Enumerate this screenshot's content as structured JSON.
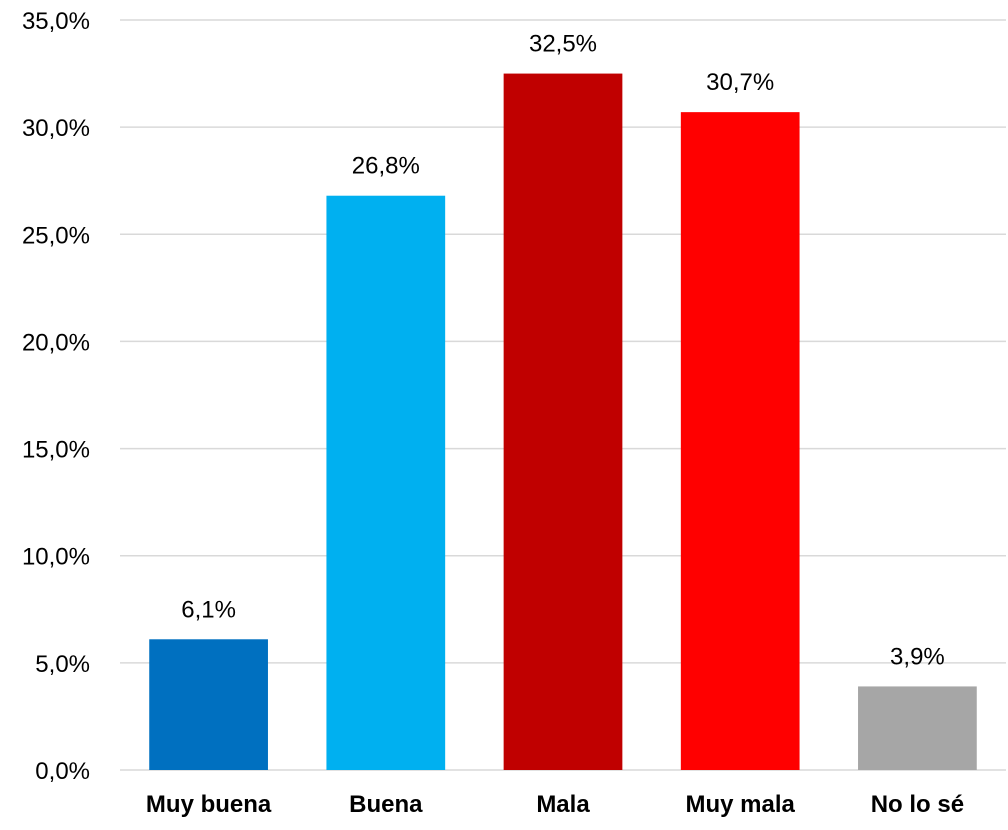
{
  "chart_data": {
    "type": "bar",
    "categories": [
      "Muy buena",
      "Buena",
      "Mala",
      "Muy mala",
      "No lo sé"
    ],
    "values": [
      6.1,
      26.8,
      32.5,
      30.7,
      3.9
    ],
    "data_labels": [
      "6,1%",
      "26,8%",
      "32,5%",
      "30,7%",
      "3,9%"
    ],
    "colors": [
      "#0070c0",
      "#00b0f0",
      "#c00000",
      "#ff0000",
      "#a6a6a6"
    ],
    "title": "",
    "xlabel": "",
    "ylabel": "",
    "ylim": [
      0,
      35
    ],
    "yticks": [
      0,
      5,
      10,
      15,
      20,
      25,
      30,
      35
    ],
    "ytick_labels": [
      "0,0%",
      "5,0%",
      "10,0%",
      "15,0%",
      "20,0%",
      "25,0%",
      "30,0%",
      "35,0%"
    ],
    "grid": true,
    "legend": "none"
  }
}
